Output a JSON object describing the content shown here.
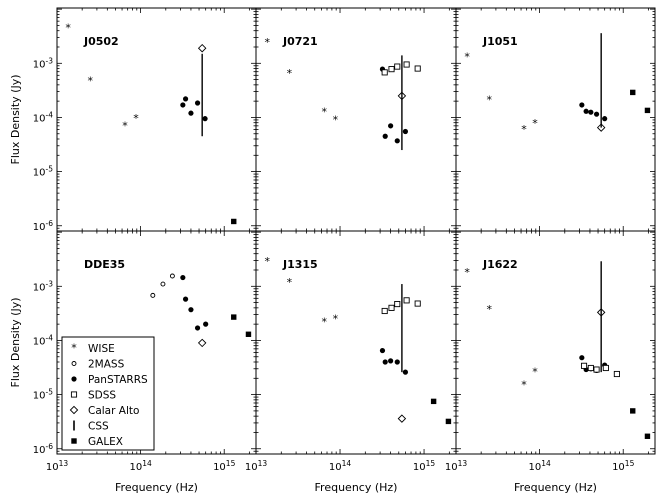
{
  "chart_data": {
    "type": "scatter",
    "layout": "2x3 panels, shared log axes",
    "xlabel": "Frequency (Hz)",
    "ylabel": "Flux Density (Jy)",
    "x_scale": "log",
    "y_scale": "log",
    "xlim": [
      10000000000000.0,
      2400000000000000.0
    ],
    "ylim": [
      8e-07,
      0.0105
    ],
    "x_tick_values": [
      10000000000000.0,
      100000000000000.0,
      1000000000000000.0
    ],
    "x_tick_labels": [
      [
        "10",
        "13"
      ],
      [
        "10",
        "14"
      ],
      [
        "10",
        "15"
      ]
    ],
    "y_tick_values": [
      1e-06,
      1e-05,
      0.0001,
      0.001
    ],
    "y_tick_labels": [
      [
        "10",
        "-6"
      ],
      [
        "10",
        "-5"
      ],
      [
        "10",
        "-4"
      ],
      [
        "10",
        "-3"
      ]
    ],
    "legend": {
      "placement": "lower-left of panel DDE35",
      "entries": [
        {
          "label": "WISE",
          "marker": "star"
        },
        {
          "label": "2MASS",
          "marker": "small-open-circle"
        },
        {
          "label": "PanSTARRS",
          "marker": "filled-circle"
        },
        {
          "label": "SDSS",
          "marker": "open-square"
        },
        {
          "label": "Calar Alto",
          "marker": "open-diamond"
        },
        {
          "label": "CSS",
          "marker": "vertical-bar"
        },
        {
          "label": "GALEX",
          "marker": "filled-square"
        }
      ]
    },
    "panels": [
      {
        "name": "J0502",
        "series": [
          {
            "name": "WISE",
            "points": [
              [
                13600000000000.0,
                0.0045
              ],
              [
                25000000000000.0,
                0.00047
              ],
              [
                65000000000000.0,
                7e-05
              ],
              [
                88000000000000.0,
                9.5e-05
              ]
            ]
          },
          {
            "name": "PanSTARRS",
            "points": [
              [
                320000000000000.0,
                0.00017
              ],
              [
                345000000000000.0,
                0.00022
              ],
              [
                400000000000000.0,
                0.00012
              ],
              [
                480000000000000.0,
                0.000185
              ],
              [
                590000000000000.0,
                9.5e-05
              ]
            ]
          },
          {
            "name": "Calar Alto",
            "points": [
              [
                545000000000000.0,
                0.0019
              ]
            ]
          },
          {
            "name": "CSS",
            "ranges": [
              [
                545000000000000.0,
                4.5e-05,
                0.0015
              ]
            ]
          },
          {
            "name": "GALEX",
            "points": [
              [
                1300000000000000.0,
                1.2e-06
              ]
            ]
          }
        ]
      },
      {
        "name": "J0721",
        "series": [
          {
            "name": "WISE",
            "points": [
              [
                13600000000000.0,
                0.0024
              ],
              [
                25000000000000.0,
                0.00065
              ],
              [
                65000000000000.0,
                0.000125
              ],
              [
                88000000000000.0,
                9e-05
              ]
            ]
          },
          {
            "name": "PanSTARRS",
            "points": [
              [
                320000000000000.0,
                0.00078
              ],
              [
                345000000000000.0,
                4.5e-05
              ],
              [
                400000000000000.0,
                7e-05
              ],
              [
                480000000000000.0,
                3.7e-05
              ],
              [
                600000000000000.0,
                5.5e-05
              ]
            ]
          },
          {
            "name": "SDSS",
            "points": [
              [
                340000000000000.0,
                0.00068
              ],
              [
                410000000000000.0,
                0.00078
              ],
              [
                480000000000000.0,
                0.00087
              ],
              [
                620000000000000.0,
                0.00095
              ],
              [
                840000000000000.0,
                0.0008
              ]
            ]
          },
          {
            "name": "Calar Alto",
            "points": [
              [
                545000000000000.0,
                0.00025
              ]
            ]
          },
          {
            "name": "CSS",
            "ranges": [
              [
                545000000000000.0,
                2.5e-05,
                0.0014
              ]
            ]
          }
        ]
      },
      {
        "name": "J1051",
        "series": [
          {
            "name": "WISE",
            "points": [
              [
                13600000000000.0,
                0.0013
              ],
              [
                25000000000000.0,
                0.00021
              ],
              [
                65000000000000.0,
                6e-05
              ],
              [
                88000000000000.0,
                7.8e-05
              ]
            ]
          },
          {
            "name": "PanSTARRS",
            "points": [
              [
                320000000000000.0,
                0.00017
              ],
              [
                360000000000000.0,
                0.00013
              ],
              [
                410000000000000.0,
                0.000125
              ],
              [
                480000000000000.0,
                0.000115
              ],
              [
                600000000000000.0,
                9.5e-05
              ]
            ]
          },
          {
            "name": "Calar Alto",
            "points": [
              [
                545000000000000.0,
                6.5e-05
              ]
            ]
          },
          {
            "name": "CSS",
            "ranges": [
              [
                545000000000000.0,
                6.5e-05,
                0.0036
              ]
            ]
          },
          {
            "name": "GALEX",
            "points": [
              [
                1300000000000000.0,
                0.00029
              ],
              [
                1950000000000000.0,
                0.000135
              ]
            ]
          }
        ]
      },
      {
        "name": "DDE35",
        "series": [
          {
            "name": "2MASS",
            "points": [
              [
                140000000000000.0,
                0.00068
              ],
              [
                185000000000000.0,
                0.0011
              ],
              [
                240000000000000.0,
                0.00155
              ]
            ]
          },
          {
            "name": "PanSTARRS",
            "points": [
              [
                320000000000000.0,
                0.00145
              ],
              [
                345000000000000.0,
                0.00058
              ],
              [
                400000000000000.0,
                0.00037
              ],
              [
                480000000000000.0,
                0.00017
              ],
              [
                600000000000000.0,
                0.0002
              ]
            ]
          },
          {
            "name": "Calar Alto",
            "points": [
              [
                545000000000000.0,
                9e-05
              ]
            ]
          },
          {
            "name": "GALEX",
            "points": [
              [
                1300000000000000.0,
                0.00027
              ],
              [
                1950000000000000.0,
                0.00013
              ]
            ]
          }
        ]
      },
      {
        "name": "J1315",
        "series": [
          {
            "name": "WISE",
            "points": [
              [
                13600000000000.0,
                0.0029
              ],
              [
                25000000000000.0,
                0.00118
              ],
              [
                65000000000000.0,
                0.00022
              ],
              [
                88000000000000.0,
                0.00025
              ]
            ]
          },
          {
            "name": "PanSTARRS",
            "points": [
              [
                320000000000000.0,
                6.5e-05
              ],
              [
                345000000000000.0,
                4e-05
              ],
              [
                400000000000000.0,
                4.2e-05
              ],
              [
                480000000000000.0,
                4e-05
              ],
              [
                600000000000000.0,
                2.6e-05
              ]
            ]
          },
          {
            "name": "SDSS",
            "points": [
              [
                340000000000000.0,
                0.00035
              ],
              [
                410000000000000.0,
                0.0004
              ],
              [
                480000000000000.0,
                0.00047
              ],
              [
                620000000000000.0,
                0.00055
              ],
              [
                840000000000000.0,
                0.00048
              ]
            ]
          },
          {
            "name": "Calar Alto",
            "points": [
              [
                545000000000000.0,
                3.6e-06
              ]
            ]
          },
          {
            "name": "CSS",
            "ranges": [
              [
                545000000000000.0,
                2.6e-05,
                0.0011
              ]
            ]
          },
          {
            "name": "GALEX",
            "points": [
              [
                1300000000000000.0,
                7.5e-06
              ],
              [
                1950000000000000.0,
                3.2e-06
              ]
            ]
          }
        ]
      },
      {
        "name": "J1622",
        "series": [
          {
            "name": "WISE",
            "points": [
              [
                13600000000000.0,
                0.0018
              ],
              [
                25000000000000.0,
                0.00037
              ],
              [
                65000000000000.0,
                1.5e-05
              ],
              [
                88000000000000.0,
                2.6e-05
              ]
            ]
          },
          {
            "name": "PanSTARRS",
            "points": [
              [
                320000000000000.0,
                4.8e-05
              ],
              [
                360000000000000.0,
                2.9e-05
              ],
              [
                410000000000000.0,
                3e-05
              ],
              [
                480000000000000.0,
                2.8e-05
              ],
              [
                600000000000000.0,
                3.5e-05
              ]
            ]
          },
          {
            "name": "SDSS",
            "points": [
              [
                340000000000000.0,
                3.4e-05
              ],
              [
                410000000000000.0,
                3.1e-05
              ],
              [
                480000000000000.0,
                2.9e-05
              ],
              [
                620000000000000.0,
                3.1e-05
              ],
              [
                840000000000000.0,
                2.4e-05
              ]
            ]
          },
          {
            "name": "Calar Alto",
            "points": [
              [
                545000000000000.0,
                0.00033
              ]
            ]
          },
          {
            "name": "CSS",
            "ranges": [
              [
                545000000000000.0,
                2.6e-05,
                0.0029
              ]
            ]
          },
          {
            "name": "GALEX",
            "points": [
              [
                1300000000000000.0,
                5e-06
              ],
              [
                1950000000000000.0,
                1.7e-06
              ]
            ]
          }
        ]
      }
    ]
  }
}
